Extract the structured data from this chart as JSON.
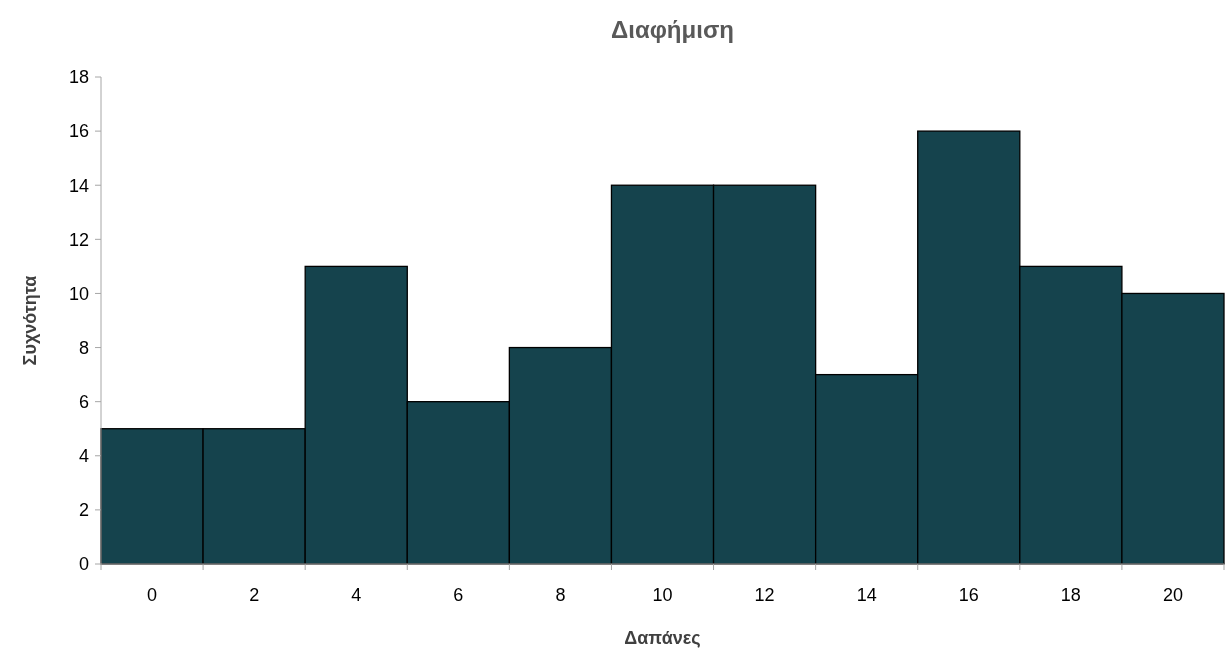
{
  "chart_data": {
    "type": "bar",
    "title": "Διαφήμιση",
    "xlabel": "Δαπάνες",
    "ylabel": "Συχνότητα",
    "categories": [
      "0",
      "2",
      "4",
      "6",
      "8",
      "10",
      "12",
      "14",
      "16",
      "18",
      "20"
    ],
    "values": [
      5,
      5,
      11,
      6,
      8,
      14,
      14,
      7,
      16,
      11,
      10
    ],
    "color": "#15434d",
    "ylim": [
      0,
      18
    ],
    "yticks": [
      0,
      2,
      4,
      6,
      8,
      10,
      12,
      14,
      16,
      18
    ],
    "grid": false
  }
}
